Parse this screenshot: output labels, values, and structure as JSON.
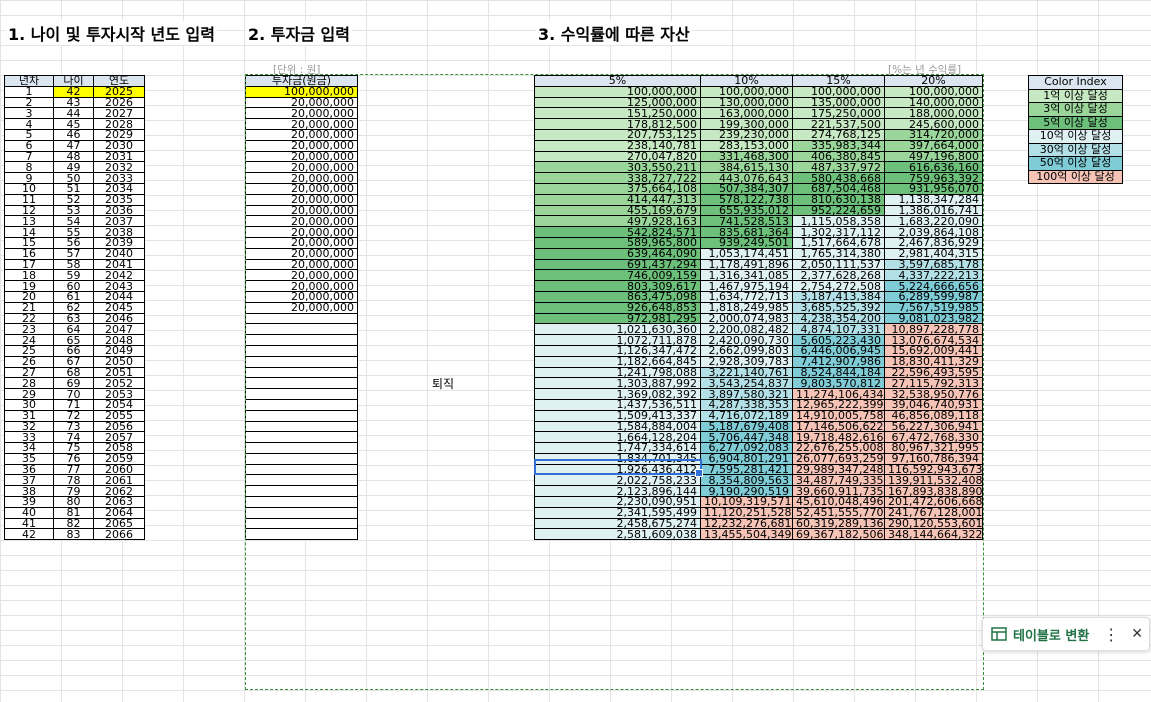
{
  "headings": {
    "s1": "1. 나이 및 투자시작 년도 입력",
    "s2": "2. 투자금 입력",
    "s3": "3. 수익률에 따른 자산"
  },
  "notes": {
    "unit": "[단위 : 원]",
    "rate": "[%는 년 수익률]"
  },
  "left_headers": [
    "년차",
    "나이",
    "연도"
  ],
  "invest_header": "투자금(원금)",
  "retire_label": "퇴직",
  "rate_headers": [
    "5%",
    "10%",
    "15%",
    "20%"
  ],
  "color_index": {
    "title": "Color Index",
    "items": [
      {
        "label": "1억 이상 달성",
        "color": "#c6e8c2"
      },
      {
        "label": "3억 이상 달성",
        "color": "#9ad69a"
      },
      {
        "label": "5억 이상 달성",
        "color": "#6cc07a"
      },
      {
        "label": "10억 이상 달성",
        "color": "#dff1f3"
      },
      {
        "label": "30억 이상 달성",
        "color": "#b3e0e6"
      },
      {
        "label": "50억 이상 달성",
        "color": "#7fcbd6"
      },
      {
        "label": "100억 이상 달성",
        "color": "#f6c3b7"
      }
    ]
  },
  "rows": [
    {
      "n": "1",
      "age": "42",
      "year": "2025",
      "inv": "100,000,000",
      "v": [
        "100,000,000",
        "100,000,000",
        "100,000,000",
        "100,000,000"
      ]
    },
    {
      "n": "2",
      "age": "43",
      "year": "2026",
      "inv": "20,000,000",
      "v": [
        "125,000,000",
        "130,000,000",
        "135,000,000",
        "140,000,000"
      ]
    },
    {
      "n": "3",
      "age": "44",
      "year": "2027",
      "inv": "20,000,000",
      "v": [
        "151,250,000",
        "163,000,000",
        "175,250,000",
        "188,000,000"
      ]
    },
    {
      "n": "4",
      "age": "45",
      "year": "2028",
      "inv": "20,000,000",
      "v": [
        "178,812,500",
        "199,300,000",
        "221,537,500",
        "245,600,000"
      ]
    },
    {
      "n": "5",
      "age": "46",
      "year": "2029",
      "inv": "20,000,000",
      "v": [
        "207,753,125",
        "239,230,000",
        "274,768,125",
        "314,720,000"
      ]
    },
    {
      "n": "6",
      "age": "47",
      "year": "2030",
      "inv": "20,000,000",
      "v": [
        "238,140,781",
        "283,153,000",
        "335,983,344",
        "397,664,000"
      ]
    },
    {
      "n": "7",
      "age": "48",
      "year": "2031",
      "inv": "20,000,000",
      "v": [
        "270,047,820",
        "331,468,300",
        "406,380,845",
        "497,196,800"
      ]
    },
    {
      "n": "8",
      "age": "49",
      "year": "2032",
      "inv": "20,000,000",
      "v": [
        "303,550,211",
        "384,615,130",
        "487,337,972",
        "616,636,160"
      ]
    },
    {
      "n": "9",
      "age": "50",
      "year": "2033",
      "inv": "20,000,000",
      "v": [
        "338,727,722",
        "443,076,643",
        "580,438,668",
        "759,963,392"
      ]
    },
    {
      "n": "10",
      "age": "51",
      "year": "2034",
      "inv": "20,000,000",
      "v": [
        "375,664,108",
        "507,384,307",
        "687,504,468",
        "931,956,070"
      ]
    },
    {
      "n": "11",
      "age": "52",
      "year": "2035",
      "inv": "20,000,000",
      "v": [
        "414,447,313",
        "578,122,738",
        "810,630,138",
        "1,138,347,284"
      ]
    },
    {
      "n": "12",
      "age": "53",
      "year": "2036",
      "inv": "20,000,000",
      "v": [
        "455,169,679",
        "655,935,012",
        "952,224,659",
        "1,386,016,741"
      ]
    },
    {
      "n": "13",
      "age": "54",
      "year": "2037",
      "inv": "20,000,000",
      "v": [
        "497,928,163",
        "741,528,513",
        "1,115,058,358",
        "1,683,220,090"
      ]
    },
    {
      "n": "14",
      "age": "55",
      "year": "2038",
      "inv": "20,000,000",
      "v": [
        "542,824,571",
        "835,681,364",
        "1,302,317,112",
        "2,039,864,108"
      ]
    },
    {
      "n": "15",
      "age": "56",
      "year": "2039",
      "inv": "20,000,000",
      "v": [
        "589,965,800",
        "939,249,501",
        "1,517,664,678",
        "2,467,836,929"
      ]
    },
    {
      "n": "16",
      "age": "57",
      "year": "2040",
      "inv": "20,000,000",
      "v": [
        "639,464,090",
        "1,053,174,451",
        "1,765,314,380",
        "2,981,404,315"
      ]
    },
    {
      "n": "17",
      "age": "58",
      "year": "2041",
      "inv": "20,000,000",
      "v": [
        "691,437,294",
        "1,178,491,896",
        "2,050,111,537",
        "3,597,685,178"
      ]
    },
    {
      "n": "18",
      "age": "59",
      "year": "2042",
      "inv": "20,000,000",
      "v": [
        "746,009,159",
        "1,316,341,085",
        "2,377,628,268",
        "4,337,222,213"
      ]
    },
    {
      "n": "19",
      "age": "60",
      "year": "2043",
      "inv": "20,000,000",
      "v": [
        "803,309,617",
        "1,467,975,194",
        "2,754,272,508",
        "5,224,666,656"
      ]
    },
    {
      "n": "20",
      "age": "61",
      "year": "2044",
      "inv": "20,000,000",
      "v": [
        "863,475,098",
        "1,634,772,713",
        "3,187,413,384",
        "6,289,599,987"
      ]
    },
    {
      "n": "21",
      "age": "62",
      "year": "2045",
      "inv": "20,000,000",
      "v": [
        "926,648,853",
        "1,818,249,985",
        "3,685,525,392",
        "7,567,519,985"
      ]
    },
    {
      "n": "22",
      "age": "63",
      "year": "2046",
      "inv": "",
      "v": [
        "972,981,295",
        "2,000,074,983",
        "4,238,354,200",
        "9,081,023,982"
      ]
    },
    {
      "n": "23",
      "age": "64",
      "year": "2047",
      "inv": "",
      "v": [
        "1,021,630,360",
        "2,200,082,482",
        "4,874,107,331",
        "10,897,228,778"
      ]
    },
    {
      "n": "24",
      "age": "65",
      "year": "2048",
      "inv": "",
      "v": [
        "1,072,711,878",
        "2,420,090,730",
        "5,605,223,430",
        "13,076,674,534"
      ]
    },
    {
      "n": "25",
      "age": "66",
      "year": "2049",
      "inv": "",
      "v": [
        "1,126,347,472",
        "2,662,099,803",
        "6,446,006,945",
        "15,692,009,441"
      ]
    },
    {
      "n": "26",
      "age": "67",
      "year": "2050",
      "inv": "",
      "v": [
        "1,182,664,845",
        "2,928,309,783",
        "7,412,907,986",
        "18,830,411,329"
      ]
    },
    {
      "n": "27",
      "age": "68",
      "year": "2051",
      "inv": "",
      "v": [
        "1,241,798,088",
        "3,221,140,761",
        "8,524,844,184",
        "22,596,493,595"
      ]
    },
    {
      "n": "28",
      "age": "69",
      "year": "2052",
      "inv": "",
      "v": [
        "1,303,887,992",
        "3,543,254,837",
        "9,803,570,812",
        "27,115,792,313"
      ]
    },
    {
      "n": "29",
      "age": "70",
      "year": "2053",
      "inv": "",
      "v": [
        "1,369,082,392",
        "3,897,580,321",
        "11,274,106,434",
        "32,538,950,776"
      ]
    },
    {
      "n": "30",
      "age": "71",
      "year": "2054",
      "inv": "",
      "v": [
        "1,437,536,511",
        "4,287,338,353",
        "12,965,222,399",
        "39,046,740,931"
      ]
    },
    {
      "n": "31",
      "age": "72",
      "year": "2055",
      "inv": "",
      "v": [
        "1,509,413,337",
        "4,716,072,189",
        "14,910,005,758",
        "46,856,089,118"
      ]
    },
    {
      "n": "32",
      "age": "73",
      "year": "2056",
      "inv": "",
      "v": [
        "1,584,884,004",
        "5,187,679,408",
        "17,146,506,622",
        "56,227,306,941"
      ]
    },
    {
      "n": "33",
      "age": "74",
      "year": "2057",
      "inv": "",
      "v": [
        "1,664,128,204",
        "5,706,447,348",
        "19,718,482,616",
        "67,472,768,330"
      ]
    },
    {
      "n": "34",
      "age": "75",
      "year": "2058",
      "inv": "",
      "v": [
        "1,747,334,614",
        "6,277,092,083",
        "22,676,255,008",
        "80,967,321,995"
      ]
    },
    {
      "n": "35",
      "age": "76",
      "year": "2059",
      "inv": "",
      "v": [
        "1,834,701,345",
        "6,904,801,291",
        "26,077,693,259",
        "97,160,786,394"
      ]
    },
    {
      "n": "36",
      "age": "77",
      "year": "2060",
      "inv": "",
      "v": [
        "1,926,436,412",
        "7,595,281,421",
        "29,989,347,248",
        "116,592,943,673"
      ]
    },
    {
      "n": "37",
      "age": "78",
      "year": "2061",
      "inv": "",
      "v": [
        "2,022,758,233",
        "8,354,809,563",
        "34,487,749,335",
        "139,911,532,408"
      ]
    },
    {
      "n": "38",
      "age": "79",
      "year": "2062",
      "inv": "",
      "v": [
        "2,123,896,144",
        "9,190,290,519",
        "39,660,911,735",
        "167,893,838,890"
      ]
    },
    {
      "n": "39",
      "age": "80",
      "year": "2063",
      "inv": "",
      "v": [
        "2,230,090,951",
        "10,109,319,571",
        "45,610,048,496",
        "201,472,606,668"
      ]
    },
    {
      "n": "40",
      "age": "81",
      "year": "2064",
      "inv": "",
      "v": [
        "2,341,595,499",
        "11,120,251,528",
        "52,451,555,770",
        "241,767,128,001"
      ]
    },
    {
      "n": "41",
      "age": "82",
      "year": "2065",
      "inv": "",
      "v": [
        "2,458,675,274",
        "12,232,276,681",
        "60,319,289,136",
        "290,120,553,601"
      ]
    },
    {
      "n": "42",
      "age": "83",
      "year": "2066",
      "inv": "",
      "v": [
        "2,581,609,038",
        "13,455,504,349",
        "69,367,182,506",
        "348,144,664,322"
      ]
    }
  ],
  "popup": {
    "label": "테이블로 변환",
    "more": "⋮",
    "close": "✕",
    "icon": "table-icon"
  }
}
